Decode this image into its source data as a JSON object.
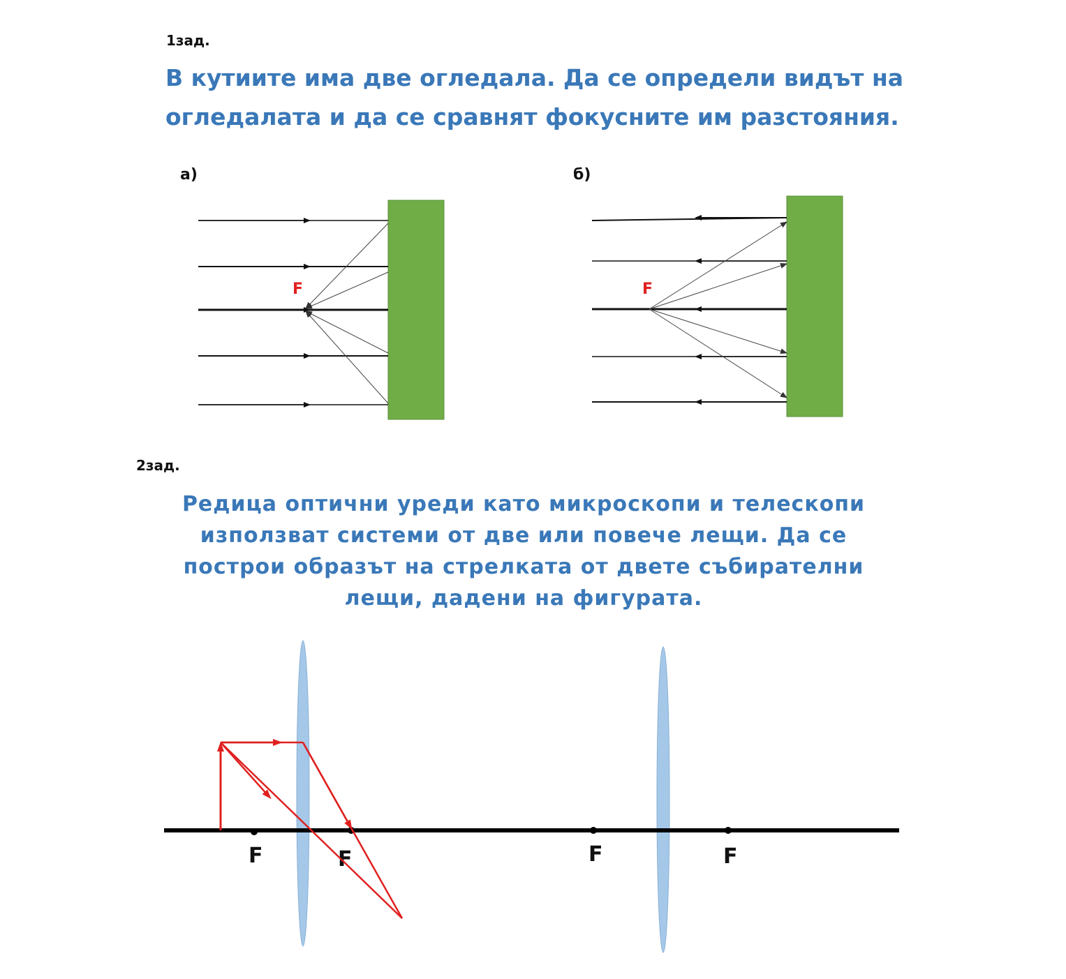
{
  "task1": {
    "label": "1зад.",
    "text_line1": "В кутиите има две огледала. Да се определи видът на",
    "text_line2": "огледалата и да се сравнят фокусните им разстояния.",
    "part_a": {
      "label": "а)",
      "focus_label": "F"
    },
    "part_b": {
      "label": "б)",
      "focus_label": "F"
    }
  },
  "task2": {
    "label": "2зад.",
    "text_line1": "Редица оптични уреди като микроскопи и телескопи",
    "text_line2": "използват системи от две или повече лещи. Да се",
    "text_line3": "построи образът на стрелката от двете събирателни",
    "text_line4": "лещи, дадени на фигурата.",
    "focus_labels": [
      "F",
      "F",
      "F",
      "F"
    ]
  },
  "colors": {
    "text_blue": "#3a78b8",
    "box_green": "#70ad47",
    "lens_blue": "#9dc3e6",
    "ray_red": "#e02020",
    "focus_red": "#e02020"
  }
}
